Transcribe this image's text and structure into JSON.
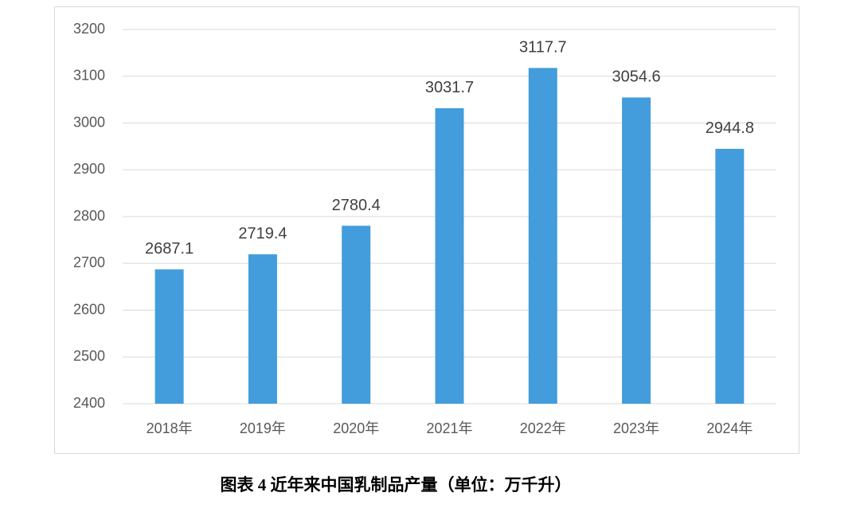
{
  "chart_data": {
    "type": "bar",
    "caption": "图表 4  近年来中国乳制品产量（单位：万千升）",
    "categories": [
      "2018年",
      "2019年",
      "2020年",
      "2021年",
      "2022年",
      "2023年",
      "2024年"
    ],
    "values": [
      2687.1,
      2719.4,
      2780.4,
      3031.7,
      3117.7,
      3054.6,
      2944.8
    ],
    "color": "#439cdb",
    "ylim": [
      2400,
      3200
    ],
    "yticks": [
      2400,
      2500,
      2600,
      2700,
      2800,
      2900,
      3000,
      3100,
      3200
    ],
    "grid": true
  }
}
